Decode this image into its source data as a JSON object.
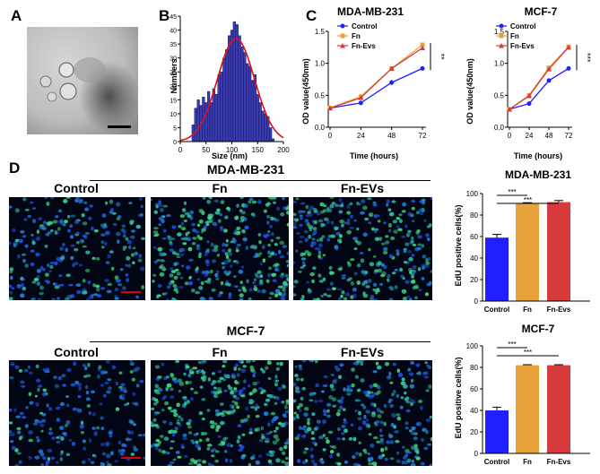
{
  "panel_labels": [
    "A",
    "B",
    "C",
    "D"
  ],
  "colors": {
    "control": "#1f1fff",
    "fn": "#e8a23c",
    "fn_evs": "#d63a3a",
    "hist_bar": "#3a3ab0",
    "fit_curve": "#e01010",
    "scale_bar": "#e00000"
  },
  "panel_d": {
    "rows": [
      {
        "cell_line": "MDA-MB-231",
        "conditions": [
          "Control",
          "Fn",
          "Fn-EVs"
        ]
      },
      {
        "cell_line": "MCF-7",
        "conditions": [
          "Control",
          "Fn",
          "Fn-EVs"
        ]
      }
    ]
  },
  "chart_data": [
    {
      "id": "histogram",
      "type": "bar",
      "title": "",
      "xlabel": "Size (nm)",
      "ylabel": "Numbers",
      "xlim": [
        0,
        200
      ],
      "ylim": [
        0,
        45
      ],
      "xticks": [
        0,
        50,
        100,
        150,
        200
      ],
      "yticks": [
        0,
        5,
        10,
        15,
        20,
        25,
        30,
        35,
        40,
        45
      ],
      "bin_width": 5,
      "x": [
        25,
        30,
        35,
        40,
        45,
        50,
        55,
        60,
        65,
        70,
        75,
        80,
        85,
        90,
        95,
        100,
        105,
        110,
        115,
        120,
        125,
        130,
        135,
        140,
        145,
        150,
        155,
        160,
        165,
        170,
        175,
        180
      ],
      "values": [
        6,
        12,
        15,
        13,
        16,
        14,
        18,
        14,
        19,
        17,
        24,
        25,
        30,
        33,
        38,
        40,
        43,
        42,
        38,
        34,
        32,
        28,
        27,
        22,
        24,
        17,
        14,
        11,
        10,
        9,
        5,
        1
      ],
      "fit": {
        "type": "gaussian",
        "mean": 108,
        "sd": 36,
        "peak": 37
      }
    },
    {
      "id": "od-mda",
      "type": "line",
      "title": "MDA-MB-231",
      "xlabel": "Time (hours)",
      "ylabel": "OD value(450nm)",
      "x": [
        0,
        24,
        48,
        72
      ],
      "xlim": [
        0,
        72
      ],
      "ylim": [
        0,
        1.5
      ],
      "xticks": [
        0,
        24,
        48,
        72
      ],
      "yticks": [
        0.0,
        0.5,
        1.0,
        1.5
      ],
      "series": [
        {
          "name": "Control",
          "values": [
            0.3,
            0.38,
            0.7,
            0.92
          ],
          "err": [
            0.01,
            0.01,
            0.04,
            0.03
          ]
        },
        {
          "name": "Fn",
          "values": [
            0.3,
            0.48,
            0.92,
            1.29
          ],
          "err": [
            0.01,
            0.02,
            0.02,
            0.02
          ]
        },
        {
          "name": "Fn-Evs",
          "values": [
            0.3,
            0.46,
            0.92,
            1.24
          ],
          "err": [
            0.01,
            0.02,
            0.02,
            0.02
          ]
        }
      ],
      "significance": "**"
    },
    {
      "id": "od-mcf",
      "type": "line",
      "title": "MCF-7",
      "xlabel": "Time (hours)",
      "ylabel": "OD value(450nm)",
      "x": [
        0,
        24,
        48,
        72
      ],
      "xlim": [
        0,
        72
      ],
      "ylim": [
        0,
        1.5
      ],
      "xticks": [
        0,
        24,
        48,
        72
      ],
      "yticks": [
        0.0,
        0.5,
        1.0,
        1.5
      ],
      "series": [
        {
          "name": "Control",
          "values": [
            0.28,
            0.37,
            0.73,
            0.92
          ],
          "err": [
            0.01,
            0.01,
            0.02,
            0.02
          ]
        },
        {
          "name": "Fn",
          "values": [
            0.28,
            0.5,
            0.93,
            1.26
          ],
          "err": [
            0.01,
            0.02,
            0.02,
            0.02
          ]
        },
        {
          "name": "Fn-Evs",
          "values": [
            0.28,
            0.49,
            0.91,
            1.25
          ],
          "err": [
            0.01,
            0.02,
            0.02,
            0.02
          ]
        }
      ],
      "significance": "***"
    },
    {
      "id": "edu-mda",
      "type": "bar",
      "title": "MDA-MB-231",
      "xlabel": "",
      "ylabel": "EdU positive cells(%)",
      "categories": [
        "Control",
        "Fn",
        "Fn-Evs"
      ],
      "values": [
        59,
        91,
        92
      ],
      "err": [
        3,
        0.5,
        1.5
      ],
      "ylim": [
        0,
        100
      ],
      "yticks": [
        0,
        20,
        40,
        60,
        80,
        100
      ],
      "significance": [
        {
          "pair": "Control vs Fn",
          "label": "***"
        },
        {
          "pair": "Control vs Fn-Evs",
          "label": "***"
        }
      ]
    },
    {
      "id": "edu-mcf",
      "type": "bar",
      "title": "MCF-7",
      "xlabel": "",
      "ylabel": "EdU positive cells(%)",
      "categories": [
        "Control",
        "Fn",
        "Fn-Evs"
      ],
      "values": [
        40,
        82,
        82
      ],
      "err": [
        3,
        0.5,
        0.5
      ],
      "ylim": [
        0,
        100
      ],
      "yticks": [
        0,
        20,
        40,
        60,
        80,
        100
      ],
      "significance": [
        {
          "pair": "Control vs Fn",
          "label": "***"
        },
        {
          "pair": "Control vs Fn-Evs",
          "label": "***"
        }
      ]
    }
  ]
}
